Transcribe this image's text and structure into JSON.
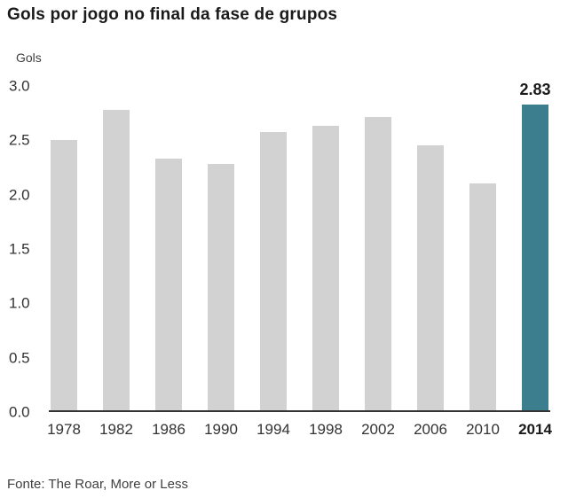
{
  "title": "Gols por jogo no final da fase de grupos",
  "ylabel": "Gols",
  "source": "Fonte: The Roar, More or Less",
  "colors": {
    "bar": "#d2d2d2",
    "highlight_bar": "#3d7e8e",
    "axis": "#333333"
  },
  "chart_data": {
    "type": "bar",
    "title": "Gols por jogo no final da fase de grupos",
    "xlabel": "",
    "ylabel": "Gols",
    "categories": [
      "1978",
      "1982",
      "1986",
      "1990",
      "1994",
      "1998",
      "2002",
      "2006",
      "2010",
      "2014"
    ],
    "values": [
      2.5,
      2.78,
      2.33,
      2.28,
      2.57,
      2.63,
      2.71,
      2.45,
      2.1,
      2.83
    ],
    "highlight_index": 9,
    "highlight_value_label": "2.83",
    "ylim": [
      0,
      3.0
    ],
    "yticks": [
      "0.0",
      "0.5",
      "1.0",
      "1.5",
      "2.0",
      "2.5",
      "3.0"
    ],
    "grid": false,
    "legend": false,
    "source": "Fonte: The Roar, More or Less"
  }
}
